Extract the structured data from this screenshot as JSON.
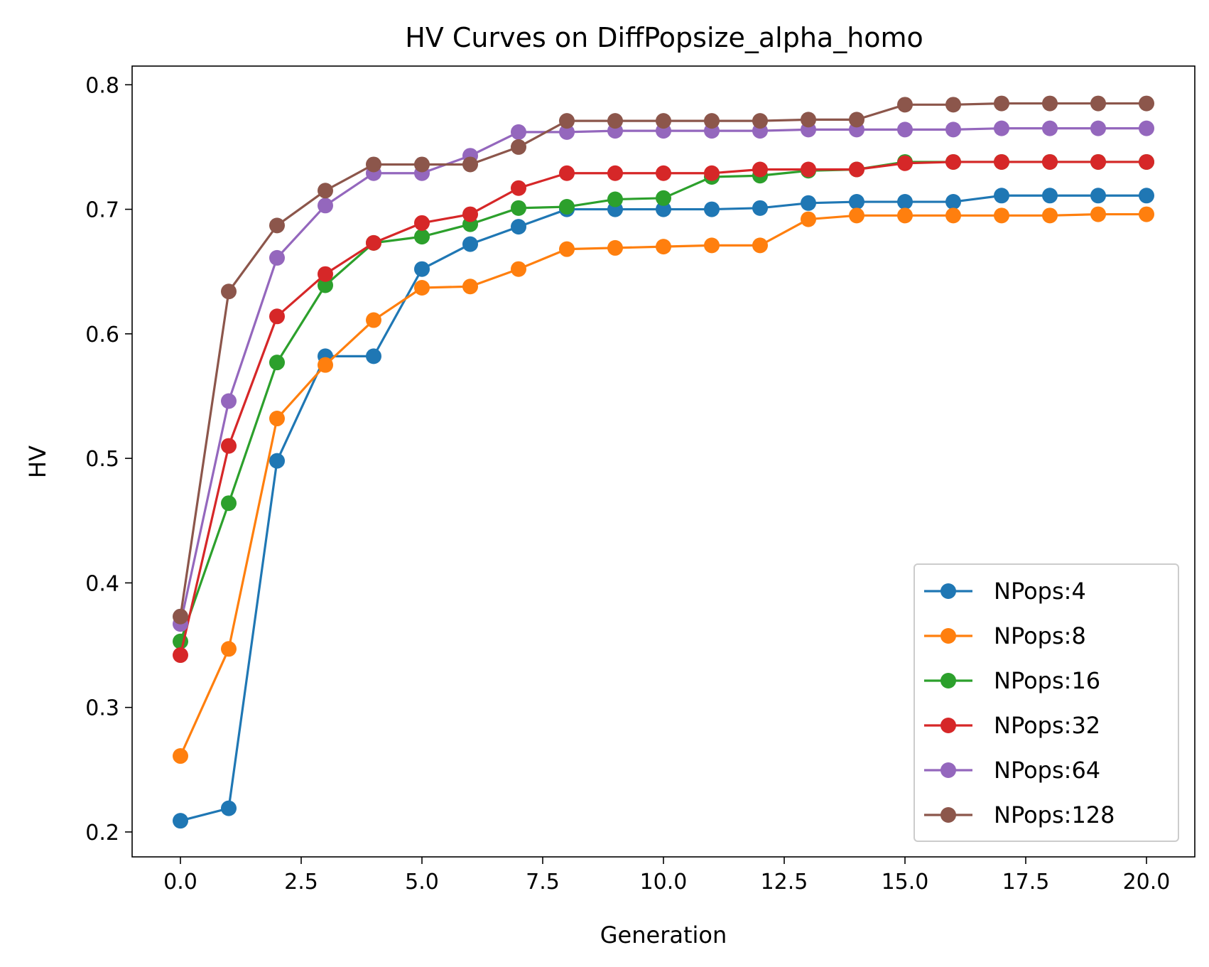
{
  "chart_data": {
    "type": "line",
    "title": "HV Curves on DiffPopsize_alpha_homo",
    "xlabel": "Generation",
    "ylabel": "HV",
    "xlim": [
      -1,
      21
    ],
    "ylim": [
      0.18,
      0.815
    ],
    "xticks": [
      0.0,
      2.5,
      5.0,
      7.5,
      10.0,
      12.5,
      15.0,
      17.5,
      20.0
    ],
    "xtick_labels": [
      "0.0",
      "2.5",
      "5.0",
      "7.5",
      "10.0",
      "12.5",
      "15.0",
      "17.5",
      "20.0"
    ],
    "yticks": [
      0.2,
      0.3,
      0.4,
      0.5,
      0.6,
      0.7,
      0.8
    ],
    "ytick_labels": [
      "0.2",
      "0.3",
      "0.4",
      "0.5",
      "0.6",
      "0.7",
      "0.8"
    ],
    "grid": false,
    "legend_position": "lower-right",
    "x": [
      0,
      1,
      2,
      3,
      4,
      5,
      6,
      7,
      8,
      9,
      10,
      11,
      12,
      13,
      14,
      15,
      16,
      17,
      18,
      19,
      20
    ],
    "series": [
      {
        "name": "NPops:4",
        "color": "#1f77b4",
        "values": [
          0.209,
          0.219,
          0.498,
          0.582,
          0.582,
          0.652,
          0.672,
          0.686,
          0.7,
          0.7,
          0.7,
          0.7,
          0.701,
          0.705,
          0.706,
          0.706,
          0.706,
          0.711,
          0.711,
          0.711,
          0.711
        ]
      },
      {
        "name": "NPops:8",
        "color": "#ff7f0e",
        "values": [
          0.261,
          0.347,
          0.532,
          0.575,
          0.611,
          0.637,
          0.638,
          0.652,
          0.668,
          0.669,
          0.67,
          0.671,
          0.671,
          0.692,
          0.695,
          0.695,
          0.695,
          0.695,
          0.695,
          0.696,
          0.696
        ]
      },
      {
        "name": "NPops:16",
        "color": "#2ca02c",
        "values": [
          0.353,
          0.464,
          0.577,
          0.639,
          0.673,
          0.678,
          0.688,
          0.701,
          0.702,
          0.708,
          0.709,
          0.726,
          0.727,
          0.731,
          0.732,
          0.738,
          0.738,
          0.738,
          0.738,
          0.738,
          0.738
        ]
      },
      {
        "name": "NPops:32",
        "color": "#d62728",
        "values": [
          0.342,
          0.51,
          0.614,
          0.648,
          0.673,
          0.689,
          0.696,
          0.717,
          0.729,
          0.729,
          0.729,
          0.729,
          0.732,
          0.732,
          0.732,
          0.737,
          0.738,
          0.738,
          0.738,
          0.738,
          0.738
        ]
      },
      {
        "name": "NPops:64",
        "color": "#9467bd",
        "values": [
          0.367,
          0.546,
          0.661,
          0.703,
          0.729,
          0.729,
          0.743,
          0.762,
          0.762,
          0.763,
          0.763,
          0.763,
          0.763,
          0.764,
          0.764,
          0.764,
          0.764,
          0.765,
          0.765,
          0.765,
          0.765
        ]
      },
      {
        "name": "NPops:128",
        "color": "#8c564b",
        "values": [
          0.373,
          0.634,
          0.687,
          0.715,
          0.736,
          0.736,
          0.736,
          0.75,
          0.771,
          0.771,
          0.771,
          0.771,
          0.771,
          0.772,
          0.772,
          0.784,
          0.784,
          0.785,
          0.785,
          0.785,
          0.785
        ]
      }
    ]
  }
}
